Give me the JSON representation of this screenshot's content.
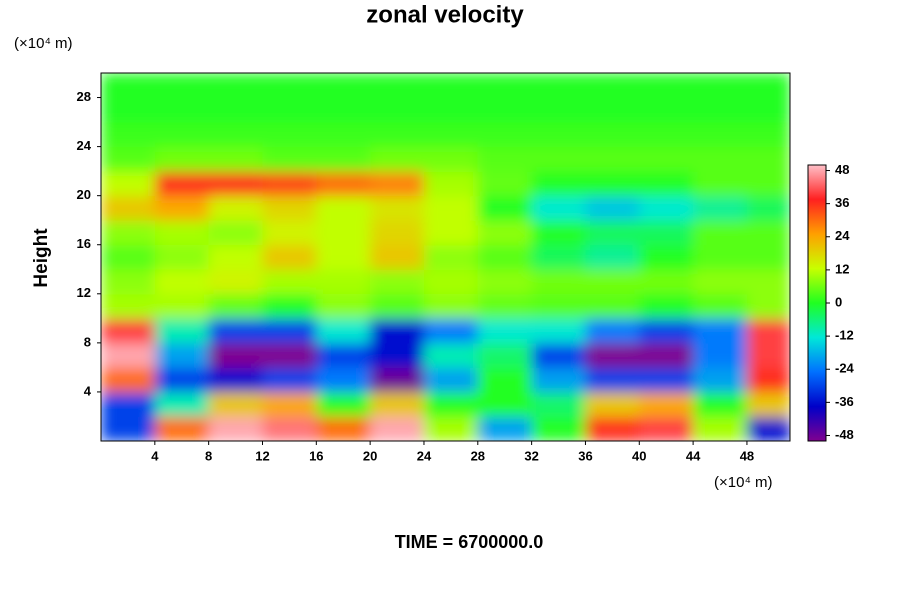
{
  "chart_data": {
    "type": "heatmap",
    "title": "zonal velocity",
    "y_unit": "(×10⁴ m)",
    "x_unit": "(×10⁴ m)",
    "ylabel": "Height",
    "footer": "TIME = 6700000.0",
    "x_bins": [
      0,
      4,
      8,
      12,
      16,
      20,
      24,
      28,
      32,
      36,
      40,
      44,
      48,
      51.2
    ],
    "y_bins": [
      0,
      2,
      4,
      6,
      8,
      10,
      12,
      14,
      16,
      18,
      20,
      22,
      24,
      26,
      28,
      30
    ],
    "z": [
      [
        -30,
        30,
        48,
        44,
        30,
        48,
        10,
        -20,
        0,
        36,
        40,
        10,
        -36
      ],
      [
        -30,
        -10,
        20,
        24,
        0,
        20,
        0,
        0,
        -5,
        20,
        24,
        0,
        20
      ],
      [
        30,
        -30,
        -36,
        -30,
        -24,
        -48,
        -20,
        0,
        -20,
        -30,
        -30,
        -20,
        36
      ],
      [
        48,
        -20,
        -50,
        -50,
        -30,
        -36,
        -10,
        -5,
        -30,
        -50,
        -50,
        -24,
        40
      ],
      [
        40,
        -10,
        -30,
        -30,
        -12,
        -36,
        -24,
        -12,
        -12,
        -24,
        -30,
        -24,
        40
      ],
      [
        10,
        10,
        5,
        0,
        8,
        4,
        8,
        5,
        4,
        4,
        0,
        4,
        8
      ],
      [
        8,
        12,
        14,
        10,
        10,
        8,
        10,
        8,
        6,
        6,
        6,
        8,
        8
      ],
      [
        4,
        8,
        12,
        20,
        12,
        20,
        8,
        4,
        -4,
        -8,
        0,
        4,
        4
      ],
      [
        8,
        10,
        8,
        14,
        12,
        18,
        12,
        8,
        0,
        -4,
        -4,
        4,
        4
      ],
      [
        20,
        24,
        14,
        18,
        12,
        16,
        12,
        0,
        -12,
        -16,
        -12,
        -8,
        -4
      ],
      [
        12,
        36,
        36,
        34,
        30,
        28,
        10,
        5,
        0,
        0,
        0,
        4,
        4
      ],
      [
        4,
        6,
        6,
        4,
        4,
        6,
        6,
        4,
        4,
        4,
        4,
        4,
        4
      ],
      [
        2,
        2,
        2,
        2,
        2,
        2,
        2,
        2,
        2,
        2,
        2,
        2,
        2
      ],
      [
        0,
        0,
        0,
        0,
        0,
        0,
        0,
        0,
        0,
        0,
        0,
        0,
        0
      ],
      [
        0,
        0,
        0,
        0,
        0,
        0,
        0,
        0,
        0,
        0,
        0,
        0,
        0
      ]
    ],
    "xlim": [
      0,
      51.2
    ],
    "ylim": [
      0,
      30
    ],
    "xticks": [
      4,
      8,
      12,
      16,
      20,
      24,
      28,
      32,
      36,
      40,
      44,
      48
    ],
    "yticks": [
      4,
      8,
      12,
      16,
      20,
      24,
      28
    ],
    "clim": [
      -50,
      50
    ],
    "cticks": [
      -48,
      -36,
      -24,
      -12,
      0,
      12,
      24,
      36,
      48
    ],
    "colors": [
      "#800090",
      "#0000c8",
      "#0070ff",
      "#00e8d8",
      "#20ff20",
      "#c8ff00",
      "#ffa000",
      "#ff2020",
      "#ffc0c8"
    ]
  }
}
